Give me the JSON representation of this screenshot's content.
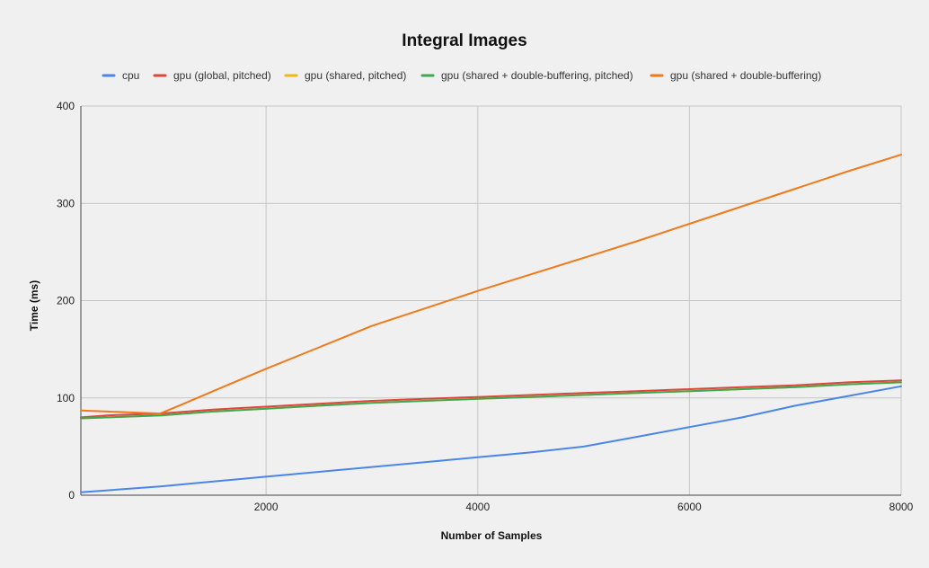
{
  "chart_data": {
    "type": "line",
    "title": "Integral Images",
    "xlabel": "Number of Samples",
    "ylabel": "Time (ms)",
    "xlim": [
      250,
      8000
    ],
    "ylim": [
      0,
      400
    ],
    "xticks": [
      2000,
      4000,
      6000,
      8000
    ],
    "yticks": [
      0,
      100,
      200,
      300,
      400
    ],
    "grid": true,
    "legend_position": "top",
    "series": [
      {
        "name": "cpu",
        "color": "#4a86e8",
        "x": [
          250,
          500,
          1000,
          1500,
          2000,
          2500,
          3000,
          3500,
          4000,
          4500,
          5000,
          5500,
          6000,
          6500,
          7000,
          7500,
          8000
        ],
        "y": [
          3,
          5,
          9,
          14,
          19,
          24,
          29,
          34,
          39,
          44,
          50,
          60,
          70,
          80,
          92,
          102,
          112
        ]
      },
      {
        "name": "gpu (global, pitched)",
        "color": "#e0453a",
        "x": [
          250,
          500,
          1000,
          1500,
          2000,
          2500,
          3000,
          3500,
          4000,
          4500,
          5000,
          5500,
          6000,
          6500,
          7000,
          7500,
          8000
        ],
        "y": [
          80,
          82,
          84,
          88,
          91,
          94,
          97,
          99,
          101,
          103,
          105,
          107,
          109,
          111,
          113,
          116,
          118
        ]
      },
      {
        "name": "gpu (shared, pitched)",
        "color": "#f2b516",
        "x": [
          250,
          500,
          1000,
          1500,
          2000,
          2500,
          3000,
          3500,
          4000,
          4500,
          5000,
          5500,
          6000,
          6500,
          7000,
          7500,
          8000
        ],
        "y": [
          79,
          80,
          82,
          86,
          89,
          92,
          95,
          97,
          99,
          101,
          103,
          105,
          107,
          109,
          111,
          114,
          116
        ]
      },
      {
        "name": "gpu (shared + double-buffering, pitched)",
        "color": "#3fa653",
        "x": [
          250,
          500,
          1000,
          1500,
          2000,
          2500,
          3000,
          3500,
          4000,
          4500,
          5000,
          5500,
          6000,
          6500,
          7000,
          7500,
          8000
        ],
        "y": [
          79,
          80,
          82,
          86,
          89,
          92,
          95,
          97,
          99,
          101,
          103,
          105,
          107,
          109,
          111,
          114,
          116
        ]
      },
      {
        "name": "gpu (shared + double-buffering)",
        "color": "#f07a1a",
        "x": [
          250,
          500,
          1000,
          1200,
          1500,
          2000,
          2500,
          3000,
          3500,
          4000,
          4500,
          5000,
          5500,
          6000,
          6500,
          7000,
          7500,
          8000
        ],
        "y": [
          87,
          86,
          84,
          93,
          107,
          130,
          152,
          174,
          192,
          210,
          227,
          244,
          261,
          279,
          297,
          315,
          333,
          350
        ]
      }
    ]
  }
}
